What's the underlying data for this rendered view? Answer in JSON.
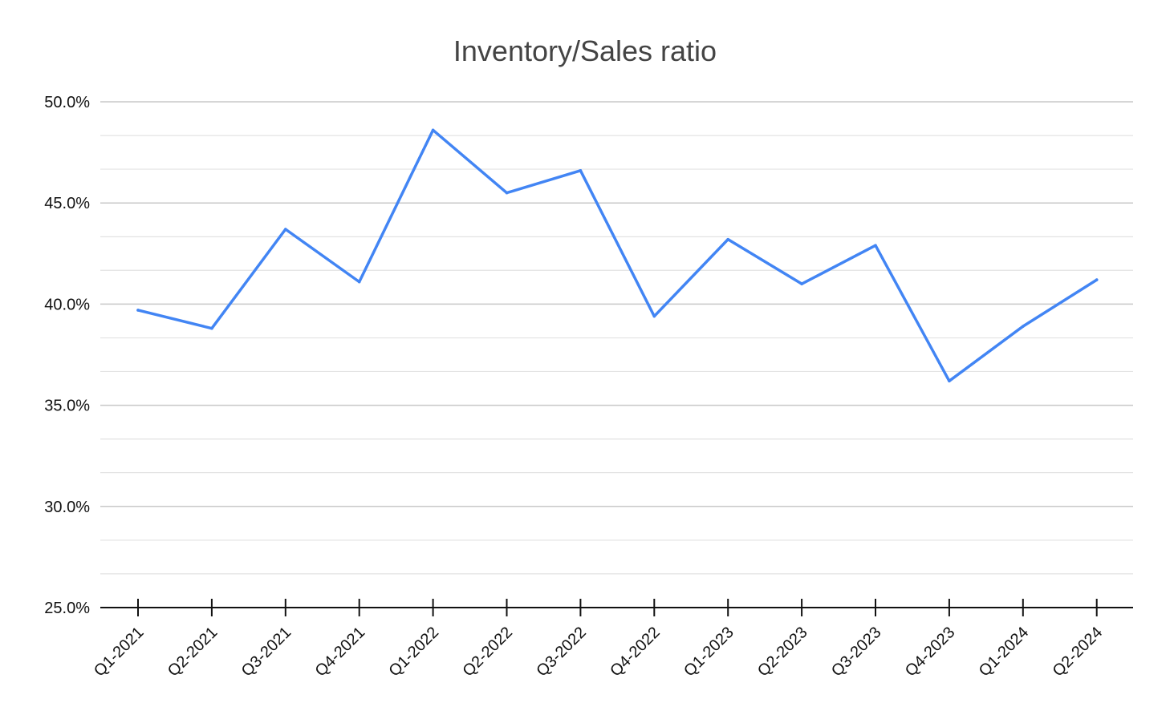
{
  "chart_data": {
    "type": "line",
    "title": "Inventory/Sales ratio",
    "xlabel": "",
    "ylabel": "",
    "categories": [
      "Q1-2021",
      "Q2-2021",
      "Q3-2021",
      "Q4-2021",
      "Q1-2022",
      "Q2-2022",
      "Q3-2022",
      "Q4-2022",
      "Q1-2023",
      "Q2-2023",
      "Q3-2023",
      "Q4-2023",
      "Q1-2024",
      "Q2-2024"
    ],
    "series": [
      {
        "values": [
          39.7,
          38.8,
          43.7,
          41.1,
          48.6,
          45.5,
          46.6,
          39.4,
          43.2,
          41.0,
          42.9,
          36.2,
          38.9,
          41.2
        ],
        "color": "#4285f4"
      }
    ],
    "ylim": [
      25,
      50
    ],
    "y_ticks": [
      {
        "value": 25,
        "label": "25.0%"
      },
      {
        "value": 30,
        "label": "30.0%"
      },
      {
        "value": 35,
        "label": "35.0%"
      },
      {
        "value": 40,
        "label": "40.0%"
      },
      {
        "value": 45,
        "label": "45.0%"
      },
      {
        "value": 50,
        "label": "50.0%"
      }
    ],
    "minor_gridlines": [
      26.67,
      28.33,
      31.67,
      33.33,
      36.67,
      38.33,
      41.67,
      43.33,
      46.67,
      48.33
    ],
    "grid": true,
    "legend": "none"
  }
}
